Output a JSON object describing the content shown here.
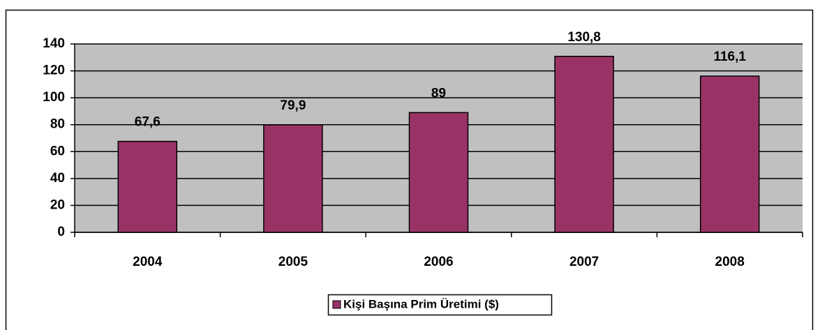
{
  "chart_data": {
    "type": "bar",
    "categories": [
      "2004",
      "2005",
      "2006",
      "2007",
      "2008"
    ],
    "series": [
      {
        "name": "Kişi Başına Prim Üretimi ($)",
        "color": "#993366",
        "values": [
          67.6,
          79.9,
          89,
          130.8,
          116.1
        ],
        "value_labels": [
          "67,6",
          "79,9",
          "89",
          "130,8",
          "116,1"
        ]
      }
    ],
    "ylim": [
      0,
      140
    ],
    "yticks": [
      0,
      20,
      40,
      60,
      80,
      100,
      120,
      140
    ],
    "grid": true,
    "legend": "bottom"
  }
}
